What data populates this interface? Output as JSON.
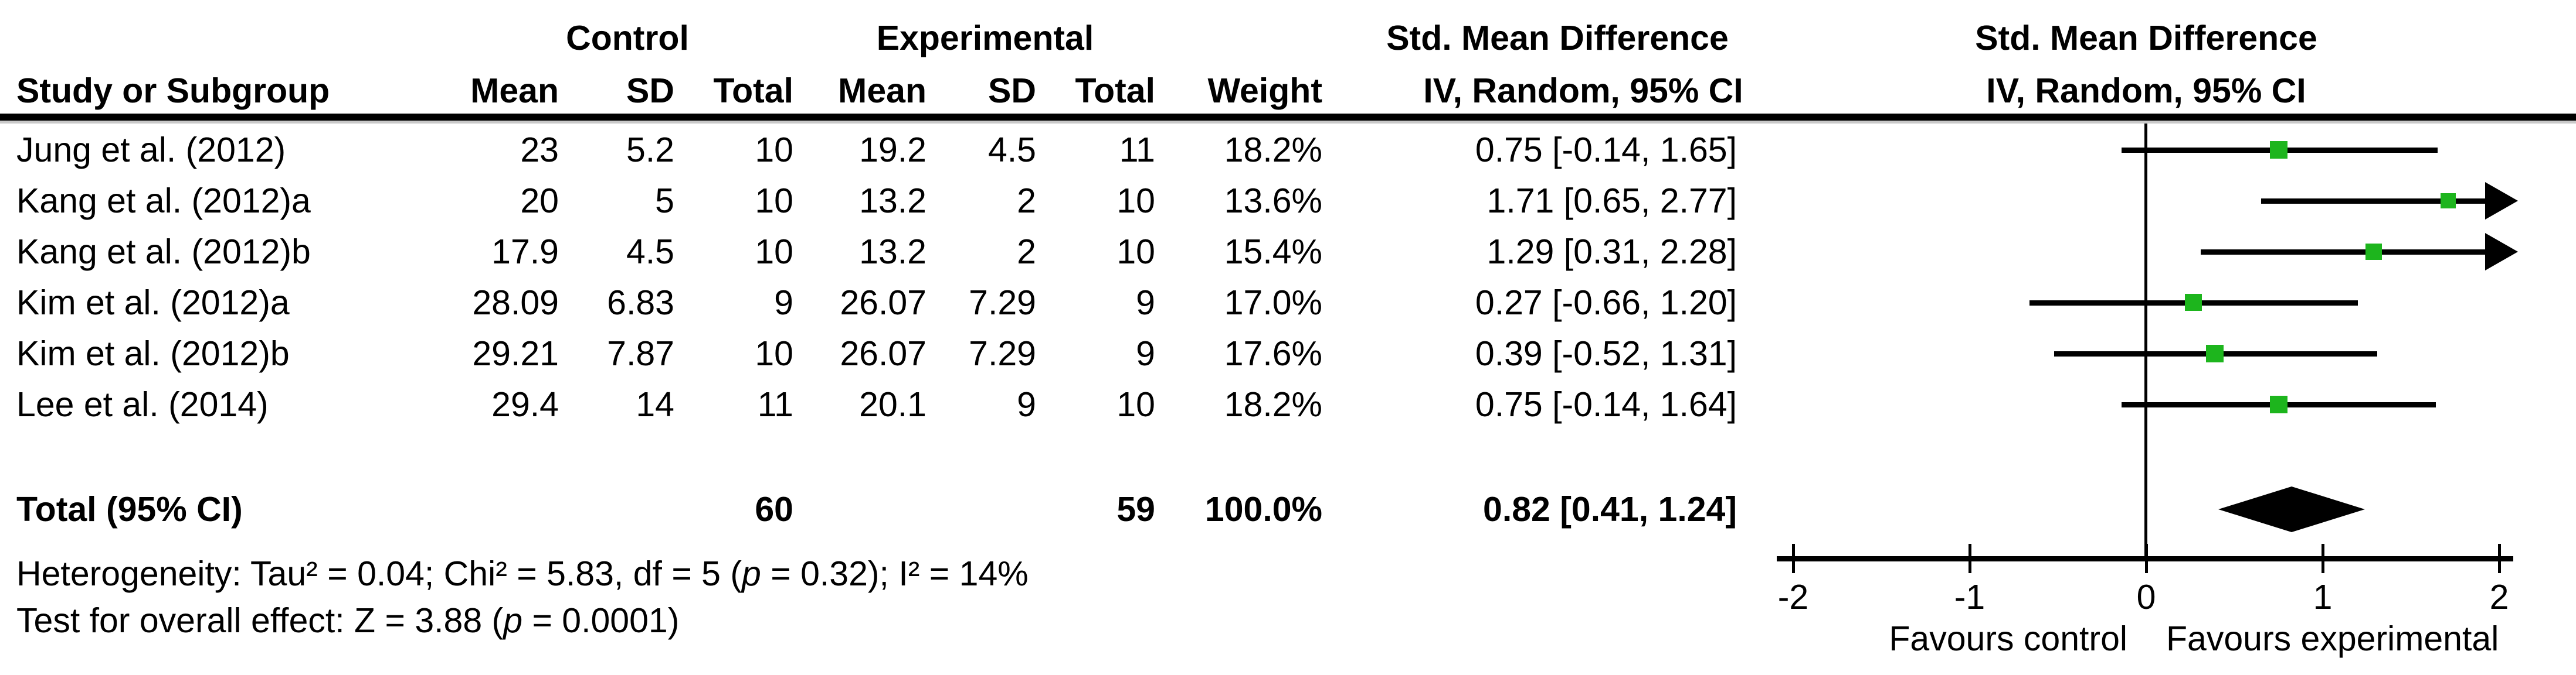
{
  "table": {
    "group_headers": {
      "control": "Control",
      "experimental": "Experimental",
      "smd_left": "Std. Mean Difference",
      "smd_right": "Std. Mean Difference"
    },
    "col_headers": {
      "study": "Study or Subgroup",
      "mean_c": "Mean",
      "sd_c": "SD",
      "total_c": "Total",
      "mean_e": "Mean",
      "sd_e": "SD",
      "total_e": "Total",
      "weight": "Weight",
      "ci_left": "IV, Random, 95% CI",
      "ci_right": "IV, Random, 95% CI"
    },
    "rows": [
      {
        "study": "Jung et al. (2012)",
        "c_mean": "23",
        "c_sd": "5.2",
        "c_total": "10",
        "e_mean": "19.2",
        "e_sd": "4.5",
        "e_total": "11",
        "weight": "18.2%",
        "ci": "0.75 [-0.14, 1.65]"
      },
      {
        "study": "Kang et al. (2012)a",
        "c_mean": "20",
        "c_sd": "5",
        "c_total": "10",
        "e_mean": "13.2",
        "e_sd": "2",
        "e_total": "10",
        "weight": "13.6%",
        "ci": "1.71 [0.65, 2.77]"
      },
      {
        "study": "Kang et al. (2012)b",
        "c_mean": "17.9",
        "c_sd": "4.5",
        "c_total": "10",
        "e_mean": "13.2",
        "e_sd": "2",
        "e_total": "10",
        "weight": "15.4%",
        "ci": "1.29 [0.31, 2.28]"
      },
      {
        "study": "Kim et al. (2012)a",
        "c_mean": "28.09",
        "c_sd": "6.83",
        "c_total": "9",
        "e_mean": "26.07",
        "e_sd": "7.29",
        "e_total": "9",
        "weight": "17.0%",
        "ci": "0.27 [-0.66, 1.20]"
      },
      {
        "study": "Kim et al. (2012)b",
        "c_mean": "29.21",
        "c_sd": "7.87",
        "c_total": "10",
        "e_mean": "26.07",
        "e_sd": "7.29",
        "e_total": "9",
        "weight": "17.6%",
        "ci": "0.39 [-0.52, 1.31]"
      },
      {
        "study": "Lee et al. (2014)",
        "c_mean": "29.4",
        "c_sd": "14",
        "c_total": "11",
        "e_mean": "20.1",
        "e_sd": "9",
        "e_total": "10",
        "weight": "18.2%",
        "ci": "0.75 [-0.14, 1.64]"
      }
    ],
    "total": {
      "label": "Total (95% CI)",
      "c_total": "60",
      "e_total": "59",
      "weight": "100.0%",
      "ci": "0.82 [0.41, 1.24]"
    },
    "heterogeneity": {
      "prefix": "Heterogeneity: Tau² = 0.04; Chi² = 5.83, df = 5 (",
      "p": "p",
      "suffix": " = 0.32); I² = 14%"
    },
    "overall_effect": {
      "prefix": "Test for overall effect: Z = 3.88 (",
      "p": "p",
      "suffix": " = 0.0001)"
    }
  },
  "axis": {
    "favours_left": "Favours control",
    "favours_right": "Favours experimental"
  },
  "chart_data": {
    "type": "scatter",
    "subtype": "forest-plot",
    "title": "Std. Mean Difference  IV, Random, 95% CI",
    "xlim": [
      -2,
      2
    ],
    "xticks": [
      -2,
      -1,
      0,
      1,
      2
    ],
    "x_axis_labels": {
      "left": "Favours control",
      "right": "Favours experimental"
    },
    "grid": false,
    "marker_color": "#1db51d",
    "line_color": "#000000",
    "studies": [
      {
        "name": "Jung et al. (2012)",
        "est": 0.75,
        "lo": -0.14,
        "hi": 1.65,
        "weight_pct": 18.2
      },
      {
        "name": "Kang et al. (2012)a",
        "est": 1.71,
        "lo": 0.65,
        "hi": 2.77,
        "weight_pct": 13.6
      },
      {
        "name": "Kang et al. (2012)b",
        "est": 1.29,
        "lo": 0.31,
        "hi": 2.28,
        "weight_pct": 15.4
      },
      {
        "name": "Kim et al. (2012)a",
        "est": 0.27,
        "lo": -0.66,
        "hi": 1.2,
        "weight_pct": 17.0
      },
      {
        "name": "Kim et al. (2012)b",
        "est": 0.39,
        "lo": -0.52,
        "hi": 1.31,
        "weight_pct": 17.6
      },
      {
        "name": "Lee et al. (2014)",
        "est": 0.75,
        "lo": -0.14,
        "hi": 1.64,
        "weight_pct": 18.2
      }
    ],
    "total": {
      "est": 0.82,
      "lo": 0.41,
      "hi": 1.24
    }
  }
}
